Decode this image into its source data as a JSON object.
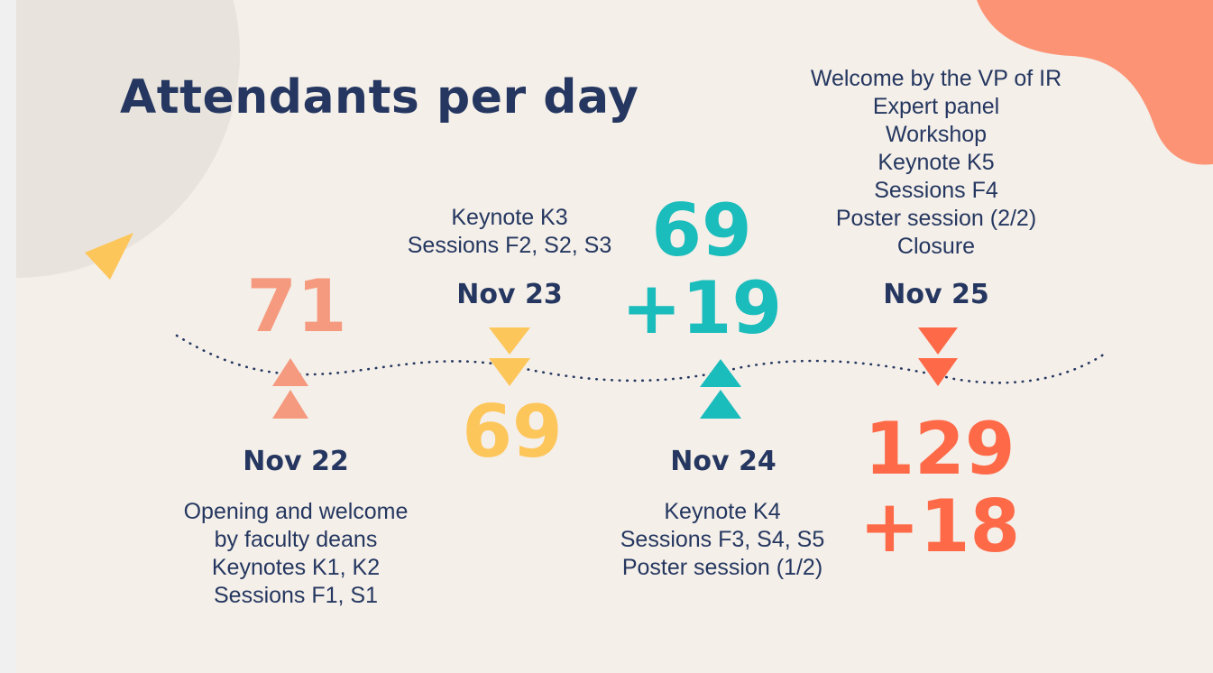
{
  "title": "Attendants per day",
  "colors": {
    "background": "#f4efe9",
    "navy": "#253760",
    "salmon": "#f59a7e",
    "yellow": "#fdc65b",
    "teal": "#1bbcbc",
    "orange": "#fe6a48",
    "blob": "#fd9375",
    "circle": "#e8e3dc"
  },
  "days": [
    {
      "date": "Nov 22",
      "items": [
        "Opening and welcome",
        "by faculty deans",
        "Keynotes K1, K2",
        "Sessions F1, S1"
      ],
      "count_lines": [
        "71"
      ],
      "arrow": "up"
    },
    {
      "date": "Nov 23",
      "items": [
        "Keynote K3",
        "Sessions F2, S2, S3"
      ],
      "count_lines": [
        "69"
      ],
      "arrow": "down"
    },
    {
      "date": "Nov 24",
      "items": [
        "Keynote K4",
        "Sessions F3, S4, S5",
        "Poster session (1/2)"
      ],
      "count_lines": [
        "69",
        "+19"
      ],
      "arrow": "up"
    },
    {
      "date": "Nov 25",
      "items": [
        "Welcome by the VP of IR",
        "Expert panel",
        "Workshop",
        "Keynote K5",
        "Sessions F4",
        "Poster session (2/2)",
        "Closure"
      ],
      "count_lines": [
        "129",
        "+18"
      ],
      "arrow": "down"
    }
  ]
}
